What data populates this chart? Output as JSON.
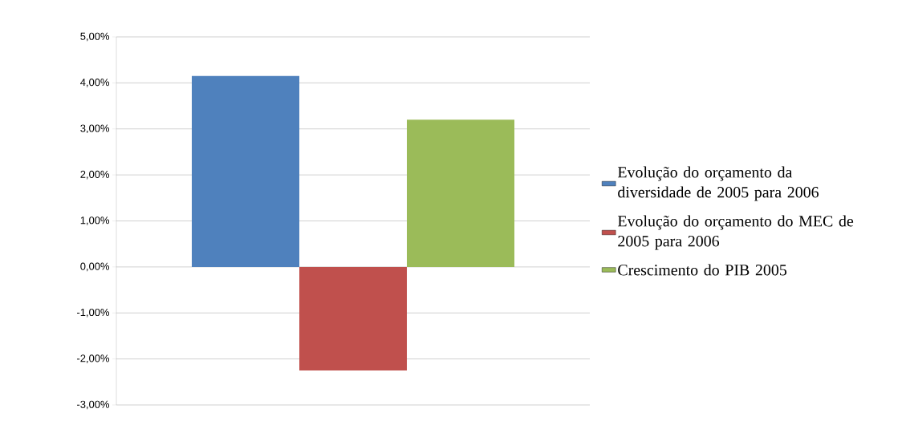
{
  "chart_data": {
    "type": "bar",
    "categories": [
      null
    ],
    "series": [
      {
        "name": "Evolução do orçamento da diversidade de 2005 para 2006",
        "color": "#4f81bd",
        "values": [
          4.15
        ]
      },
      {
        "name": "Evolução do orçamento do MEC de 2005 para 2006",
        "color": "#c0504d",
        "values": [
          -2.25
        ]
      },
      {
        "name": "Crescimento do PIB 2005",
        "color": "#9bbb59",
        "values": [
          3.2
        ]
      }
    ],
    "ylim": [
      -3,
      5
    ],
    "yticks": [
      {
        "value": -3,
        "label": "-3,00%"
      },
      {
        "value": -2,
        "label": "-2,00%"
      },
      {
        "value": -1,
        "label": "-1,00%"
      },
      {
        "value": 0,
        "label": "0,00%"
      },
      {
        "value": 1,
        "label": "1,00%"
      },
      {
        "value": 2,
        "label": "2,00%"
      },
      {
        "value": 3,
        "label": "3,00%"
      },
      {
        "value": 4,
        "label": "4,00%"
      },
      {
        "value": 5,
        "label": "5,00%"
      }
    ],
    "grid": "y",
    "legend": "right"
  }
}
